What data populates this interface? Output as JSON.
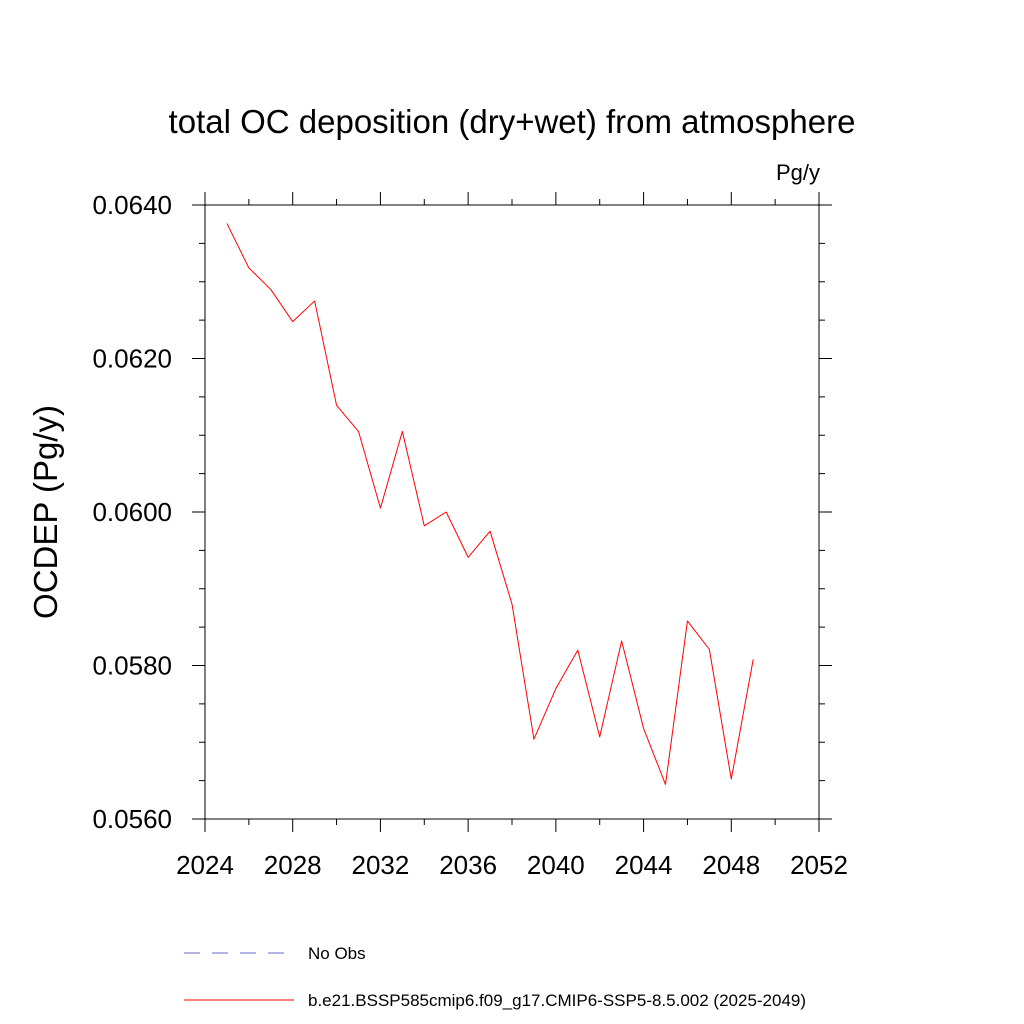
{
  "chart_data": {
    "type": "line",
    "title": "total OC deposition (dry+wet) from atmosphere",
    "units_label": "Pg/y",
    "ylabel": "OCDEP  (Pg/y)",
    "xlabel": "",
    "xlim": [
      2024,
      2052
    ],
    "ylim": [
      0.056,
      0.064
    ],
    "x_ticks": [
      2024,
      2028,
      2032,
      2036,
      2040,
      2044,
      2048,
      2052
    ],
    "x_tick_labels": [
      "2024",
      "2028",
      "2032",
      "2036",
      "2040",
      "2044",
      "2048",
      "2052"
    ],
    "x_minor_step": 2,
    "y_ticks": [
      0.056,
      0.058,
      0.06,
      0.062,
      0.064
    ],
    "y_tick_labels": [
      "0.0560",
      "0.0580",
      "0.0600",
      "0.0620",
      "0.0640"
    ],
    "y_minor_step": 0.0005,
    "grid": false,
    "series": [
      {
        "name": "b.e21.BSSP585cmip6.f09_g17.CMIP6-SSP5-8.5.002 (2025-2049)",
        "color": "#ff0000",
        "dash": "solid",
        "x": [
          2025,
          2026,
          2027,
          2028,
          2029,
          2030,
          2031,
          2032,
          2033,
          2034,
          2035,
          2036,
          2037,
          2038,
          2039,
          2040,
          2041,
          2042,
          2043,
          2044,
          2045,
          2046,
          2047,
          2048,
          2049
        ],
        "values": [
          0.06376,
          0.06318,
          0.0629,
          0.06248,
          0.06275,
          0.06139,
          0.06105,
          0.06005,
          0.06105,
          0.05982,
          0.06,
          0.05941,
          0.05975,
          0.0588,
          0.05704,
          0.0577,
          0.0582,
          0.05707,
          0.05832,
          0.05718,
          0.05645,
          0.05858,
          0.05821,
          0.05652,
          0.05808
        ]
      }
    ],
    "legend": [
      {
        "label": "No Obs",
        "color": "#6a6ac8",
        "dash": "dashed"
      },
      {
        "label": "b.e21.BSSP585cmip6.f09_g17.CMIP6-SSP5-8.5.002 (2025-2049)",
        "color": "#ff0000",
        "dash": "solid"
      }
    ]
  }
}
